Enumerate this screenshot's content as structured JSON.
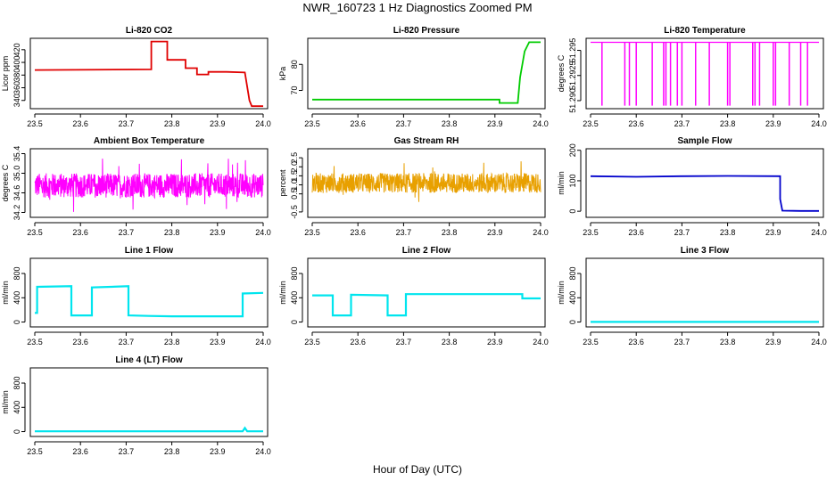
{
  "title": "NWR_160723  1 Hz Diagnostics Zoomed PM",
  "xlabel": "Hour of Day (UTC)",
  "chart_data": [
    {
      "type": "line",
      "title": "Li-820 CO2",
      "ylabel": "Licor ppm",
      "color": "#e00000",
      "xlim": [
        23.5,
        24.0
      ],
      "ylim": [
        327,
        438
      ],
      "xticks": [
        23.5,
        23.6,
        23.7,
        23.8,
        23.9,
        24.0
      ],
      "xtick_labels": [
        "23.5",
        "23.6",
        "23.7",
        "23.8",
        "23.9",
        "24.0"
      ],
      "yticks": [
        340,
        360,
        380,
        400,
        420
      ],
      "ytick_labels": [
        "340",
        "360",
        "380",
        "400",
        "420"
      ],
      "x": [
        23.5,
        23.755,
        23.755,
        23.79,
        23.79,
        23.83,
        23.83,
        23.855,
        23.855,
        23.88,
        23.88,
        23.92,
        23.92,
        23.96,
        23.97,
        23.975,
        24.0
      ],
      "y": [
        388,
        389,
        433,
        433,
        404,
        404,
        391,
        391,
        381,
        381,
        385,
        385,
        385,
        384,
        340,
        331,
        331
      ]
    },
    {
      "type": "line",
      "title": "Li-820 Pressure",
      "ylabel": "kPa",
      "color": "#00cc00",
      "xlim": [
        23.5,
        24.0
      ],
      "ylim": [
        63,
        90
      ],
      "xticks": [
        23.5,
        23.6,
        23.7,
        23.8,
        23.9,
        24.0
      ],
      "xtick_labels": [
        "23.5",
        "23.6",
        "23.7",
        "23.8",
        "23.9",
        "24.0"
      ],
      "yticks": [
        70,
        80
      ],
      "ytick_labels": [
        "70",
        "80"
      ],
      "x": [
        23.5,
        23.91,
        23.91,
        23.95,
        23.955,
        23.965,
        23.975,
        24.0
      ],
      "y": [
        66.5,
        66.5,
        65.2,
        65.2,
        75,
        85,
        88.5,
        88.5
      ]
    },
    {
      "type": "line",
      "title": "Li-820 Temperature",
      "ylabel": "degrees C",
      "color": "#ff00ff",
      "xlim": [
        23.5,
        24.0
      ],
      "ylim": [
        51.2892,
        51.2962
      ],
      "xticks": [
        23.5,
        23.6,
        23.7,
        23.8,
        23.9,
        24.0
      ],
      "xtick_labels": [
        "23.5",
        "23.6",
        "23.7",
        "23.8",
        "23.9",
        "24.0"
      ],
      "yticks": [
        51.29,
        51.2925,
        51.295
      ],
      "ytick_labels": [
        "51.290",
        "51.2925",
        "51.295"
      ],
      "baseline": 51.2958,
      "low": 51.2895,
      "drops": [
        23.525,
        23.575,
        23.585,
        23.6,
        23.635,
        23.66,
        23.665,
        23.675,
        23.69,
        23.7,
        23.73,
        23.76,
        23.8,
        23.805,
        23.855,
        23.86,
        23.87,
        23.9,
        23.905,
        23.935,
        23.96,
        23.975
      ]
    },
    {
      "type": "line",
      "title": "Ambient Box Temperature",
      "ylabel": "degrees C",
      "color": "#ff00ff",
      "xlim": [
        23.5,
        24.0
      ],
      "ylim": [
        34.1,
        35.5
      ],
      "xticks": [
        23.5,
        23.6,
        23.7,
        23.8,
        23.9,
        24.0
      ],
      "xtick_labels": [
        "23.5",
        "23.6",
        "23.7",
        "23.8",
        "23.9",
        "24.0"
      ],
      "yticks": [
        34.2,
        34.6,
        35.0,
        35.4
      ],
      "ytick_labels": [
        "34.2",
        "34.6",
        "35.0",
        "35.4"
      ],
      "noise": {
        "center": 34.75,
        "amplitude": 0.25,
        "min": 34.12,
        "max": 35.48
      }
    },
    {
      "type": "line",
      "title": "Gas Stream RH",
      "ylabel": "percent",
      "color": "#e8a000",
      "xlim": [
        23.5,
        24.0
      ],
      "ylim": [
        -0.8,
        3.0
      ],
      "xticks": [
        23.5,
        23.6,
        23.7,
        23.8,
        23.9,
        24.0
      ],
      "xtick_labels": [
        "23.5",
        "23.6",
        "23.7",
        "23.8",
        "23.9",
        "24.0"
      ],
      "yticks": [
        -0.5,
        0.5,
        1.0,
        1.5,
        2.0,
        2.5
      ],
      "ytick_labels": [
        "-0.5",
        "0.5",
        "1.0",
        "1.5",
        "2.0",
        "2.5"
      ],
      "noise": {
        "center": 1.1,
        "amplitude": 0.55,
        "min": -0.75,
        "max": 2.9
      }
    },
    {
      "type": "line",
      "title": "Sample Flow",
      "ylabel": "ml/min",
      "color": "#0000cc",
      "xlim": [
        23.5,
        24.0
      ],
      "ylim": [
        -20,
        205
      ],
      "xticks": [
        23.5,
        23.6,
        23.7,
        23.8,
        23.9,
        24.0
      ],
      "xtick_labels": [
        "23.5",
        "23.6",
        "23.7",
        "23.8",
        "23.9",
        "24.0"
      ],
      "yticks": [
        0,
        100,
        200
      ],
      "ytick_labels": [
        "0",
        "100",
        "200"
      ],
      "x": [
        23.5,
        23.6,
        23.7,
        23.8,
        23.915,
        23.915,
        23.92,
        23.96,
        24.0
      ],
      "y": [
        115,
        113,
        115,
        116,
        115,
        40,
        2,
        1,
        1
      ]
    },
    {
      "type": "line",
      "title": "Line 1 Flow",
      "ylabel": "ml/min",
      "color": "#00e5ee",
      "xlim": [
        23.5,
        24.0
      ],
      "ylim": [
        -80,
        1050
      ],
      "xticks": [
        23.5,
        23.6,
        23.7,
        23.8,
        23.9,
        24.0
      ],
      "xtick_labels": [
        "23.5",
        "23.6",
        "23.7",
        "23.8",
        "23.9",
        "24.0"
      ],
      "yticks": [
        0,
        400,
        800
      ],
      "ytick_labels": [
        "0",
        "400",
        "800"
      ],
      "x": [
        23.5,
        23.505,
        23.505,
        23.58,
        23.58,
        23.625,
        23.625,
        23.705,
        23.705,
        23.75,
        23.8,
        23.955,
        23.955,
        24.0
      ],
      "y": [
        150,
        150,
        580,
        590,
        110,
        110,
        570,
        590,
        110,
        100,
        95,
        95,
        470,
        480
      ]
    },
    {
      "type": "line",
      "title": "Line 2 Flow",
      "ylabel": "ml/min",
      "color": "#00e5ee",
      "xlim": [
        23.5,
        24.0
      ],
      "ylim": [
        -80,
        1050
      ],
      "xticks": [
        23.5,
        23.6,
        23.7,
        23.8,
        23.9,
        24.0
      ],
      "xtick_labels": [
        "23.5",
        "23.6",
        "23.7",
        "23.8",
        "23.9",
        "24.0"
      ],
      "yticks": [
        0,
        400,
        800
      ],
      "ytick_labels": [
        "0",
        "400",
        "800"
      ],
      "x": [
        23.5,
        23.545,
        23.545,
        23.585,
        23.585,
        23.665,
        23.665,
        23.705,
        23.705,
        23.96,
        23.96,
        24.0
      ],
      "y": [
        440,
        440,
        110,
        110,
        450,
        440,
        110,
        110,
        460,
        460,
        390,
        390
      ]
    },
    {
      "type": "line",
      "title": "Line 3 Flow",
      "ylabel": "ml/min",
      "color": "#00e5ee",
      "xlim": [
        23.5,
        24.0
      ],
      "ylim": [
        -80,
        1050
      ],
      "xticks": [
        23.5,
        23.6,
        23.7,
        23.8,
        23.9,
        24.0
      ],
      "xtick_labels": [
        "23.5",
        "23.6",
        "23.7",
        "23.8",
        "23.9",
        "24.0"
      ],
      "yticks": [
        0,
        400,
        800
      ],
      "ytick_labels": [
        "0",
        "400",
        "800"
      ],
      "x": [
        23.5,
        24.0
      ],
      "y": [
        2,
        2
      ]
    },
    {
      "type": "line",
      "title": "Line 4 (LT) Flow",
      "ylabel": "ml/min",
      "color": "#00e5ee",
      "xlim": [
        23.5,
        24.0
      ],
      "ylim": [
        -80,
        1050
      ],
      "xticks": [
        23.5,
        23.6,
        23.7,
        23.8,
        23.9,
        24.0
      ],
      "xtick_labels": [
        "23.5",
        "23.6",
        "23.7",
        "23.8",
        "23.9",
        "24.0"
      ],
      "yticks": [
        0,
        400,
        800
      ],
      "ytick_labels": [
        "0",
        "400",
        "800"
      ],
      "x": [
        23.5,
        23.955,
        23.96,
        23.965,
        24.0
      ],
      "y": [
        5,
        5,
        60,
        5,
        5
      ]
    }
  ]
}
